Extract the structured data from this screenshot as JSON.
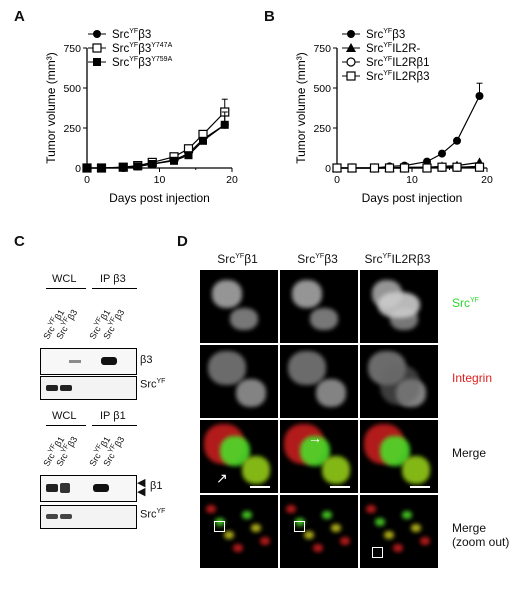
{
  "panels": {
    "A": "A",
    "B": "B",
    "C": "C",
    "D": "D"
  },
  "colors": {
    "green": "#2fd62f",
    "red": "#e02020",
    "black": "#111111"
  },
  "chartA": {
    "ylabel": "Tumor volume (mm³)",
    "xlabel": "Days post injection",
    "yticks": [
      "0",
      "250",
      "500",
      "750"
    ],
    "xticks": [
      "0",
      "10",
      "20"
    ],
    "legend": [
      {
        "base": "Src",
        "sup": "YF",
        "rest": "β3",
        "sup2": ""
      },
      {
        "base": "Src",
        "sup": "YF",
        "rest": "β3",
        "sup2": "Y747A"
      },
      {
        "base": "Src",
        "sup": "YF",
        "rest": "β3",
        "sup2": "Y759A"
      }
    ]
  },
  "chartB": {
    "ylabel": "Tumor volume (mm³)",
    "xlabel": "Days post injection",
    "yticks": [
      "0",
      "250",
      "500",
      "750"
    ],
    "xticks": [
      "0",
      "10",
      "20"
    ],
    "legend": [
      {
        "base": "Src",
        "sup": "YF",
        "rest": "β3"
      },
      {
        "base": "Src",
        "sup": "YF",
        "rest": "IL2R-"
      },
      {
        "base": "Src",
        "sup": "YF",
        "rest": "IL2Rβ1"
      },
      {
        "base": "Src",
        "sup": "YF",
        "rest": "IL2Rβ3"
      }
    ]
  },
  "chart_data": [
    {
      "type": "line",
      "xlabel": "Days post injection",
      "ylabel": "Tumor volume (mm³)",
      "xlim": [
        0,
        20
      ],
      "ylim": [
        0,
        750
      ],
      "series": [
        {
          "name": "SrcYFβ3",
          "marker": "filled-circle",
          "x": [
            0,
            2,
            5,
            7,
            9,
            12,
            14,
            16,
            19
          ],
          "y": [
            0,
            0,
            0,
            10,
            25,
            50,
            90,
            180,
            270
          ]
        },
        {
          "name": "SrcYFβ3Y747A",
          "marker": "open-square",
          "x": [
            0,
            2,
            5,
            7,
            9,
            12,
            14,
            16,
            19
          ],
          "y": [
            0,
            0,
            5,
            15,
            35,
            70,
            120,
            210,
            350
          ]
        },
        {
          "name": "SrcYFβ3Y759A",
          "marker": "filled-square",
          "x": [
            0,
            2,
            5,
            7,
            9,
            12,
            14,
            16,
            19
          ],
          "y": [
            0,
            0,
            5,
            10,
            25,
            45,
            80,
            170,
            270
          ]
        }
      ]
    },
    {
      "type": "line",
      "xlabel": "Days post injection",
      "ylabel": "Tumor volume (mm³)",
      "xlim": [
        0,
        20
      ],
      "ylim": [
        0,
        750
      ],
      "series": [
        {
          "name": "SrcYFβ3",
          "marker": "filled-circle",
          "x": [
            0,
            2,
            5,
            7,
            9,
            12,
            14,
            16,
            19
          ],
          "y": [
            0,
            0,
            0,
            10,
            15,
            40,
            90,
            170,
            450
          ]
        },
        {
          "name": "SrcYFIL2R-",
          "marker": "filled-triangle",
          "x": [
            0,
            2,
            5,
            7,
            9,
            12,
            14,
            16,
            19
          ],
          "y": [
            0,
            0,
            0,
            0,
            5,
            5,
            10,
            15,
            35
          ]
        },
        {
          "name": "SrcYFIL2Rβ1",
          "marker": "open-circle",
          "x": [
            0,
            2,
            5,
            7,
            9,
            12,
            14,
            16,
            19
          ],
          "y": [
            0,
            0,
            0,
            0,
            0,
            5,
            5,
            5,
            10
          ]
        },
        {
          "name": "SrcYFIL2Rβ3",
          "marker": "open-square",
          "x": [
            0,
            2,
            5,
            7,
            9,
            12,
            14,
            16,
            19
          ],
          "y": [
            0,
            0,
            0,
            0,
            0,
            0,
            5,
            5,
            5
          ]
        }
      ]
    }
  ],
  "blotC": {
    "top_groups": [
      "WCL",
      "IP β3"
    ],
    "bottom_groups": [
      "WCL",
      "IP β1"
    ],
    "lanes": [
      {
        "base": "Src",
        "sup": "YF",
        "rest": "β1"
      },
      {
        "base": "Src",
        "sup": "YF",
        "rest": "β3"
      },
      {
        "base": "Src",
        "sup": "YF",
        "rest": "β1"
      },
      {
        "base": "Src",
        "sup": "YF",
        "rest": "β3"
      }
    ],
    "band_labels_top": [
      "β3"
    ],
    "band_src_base": "Src",
    "band_src_sup": "YF",
    "band_labels_bottom": [
      "β1"
    ]
  },
  "panelD": {
    "columns": [
      {
        "base": "Src",
        "sup": "YF",
        "rest": "β1"
      },
      {
        "base": "Src",
        "sup": "YF",
        "rest": "β3"
      },
      {
        "base": "Src",
        "sup": "YF",
        "rest": "IL2Rβ3"
      }
    ],
    "rows": [
      {
        "base": "Src",
        "sup": "YF",
        "color": "#2fd62f"
      },
      {
        "base": "Integrin",
        "sup": "",
        "color": "#e02020"
      },
      {
        "base": "Merge",
        "sup": "",
        "color": "#111111"
      },
      {
        "base": "Merge\n(zoom out)",
        "sup": "",
        "color": "#111111"
      }
    ]
  }
}
